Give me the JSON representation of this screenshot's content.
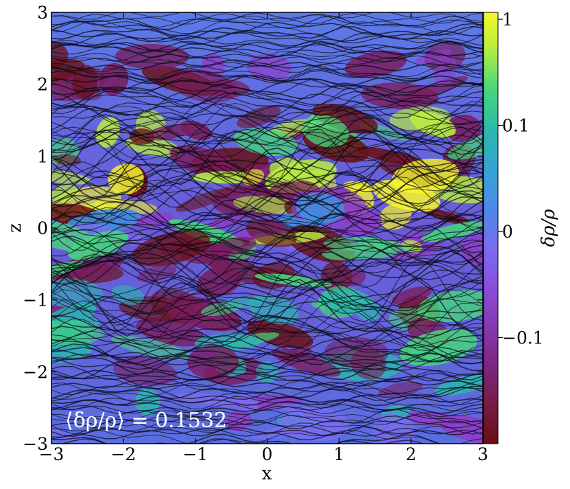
{
  "chart_data": {
    "type": "heatmap",
    "title": "",
    "xlabel": "x",
    "ylabel": "z",
    "xlim": [
      -3,
      3
    ],
    "ylim": [
      -3,
      3
    ],
    "x_ticks": [
      {
        "value": -3,
        "label": "−3"
      },
      {
        "value": -2,
        "label": "−2"
      },
      {
        "value": -1,
        "label": "−1"
      },
      {
        "value": 0,
        "label": "0"
      },
      {
        "value": 1,
        "label": "1"
      },
      {
        "value": 2,
        "label": "2"
      },
      {
        "value": 3,
        "label": "3"
      }
    ],
    "y_ticks": [
      {
        "value": -3,
        "label": "−3"
      },
      {
        "value": -2,
        "label": "−2"
      },
      {
        "value": -1,
        "label": "−1"
      },
      {
        "value": 0,
        "label": "0"
      },
      {
        "value": 1,
        "label": "1"
      },
      {
        "value": 2,
        "label": "2"
      },
      {
        "value": 3,
        "label": "3"
      }
    ],
    "colorbar": {
      "label": "δρ/ρ",
      "scale": "symlog",
      "range": [
        -1,
        1
      ],
      "ticks": [
        {
          "value": 1,
          "label": "1"
        },
        {
          "value": 0.1,
          "label": "0.1"
        },
        {
          "value": 0,
          "label": "0"
        },
        {
          "value": -0.1,
          "label": "−0.1"
        }
      ],
      "colors": [
        "#6b0f12",
        "#7a1c5c",
        "#8e3cc7",
        "#7b6cf0",
        "#3f8fe0",
        "#2bb6b0",
        "#46d67c",
        "#b9ee3e",
        "#f7f72a"
      ]
    },
    "overlay": "streamlines",
    "annotation": {
      "label": "⟨δρ/ρ⟩ = 0.1532",
      "value": 0.1532
    }
  }
}
